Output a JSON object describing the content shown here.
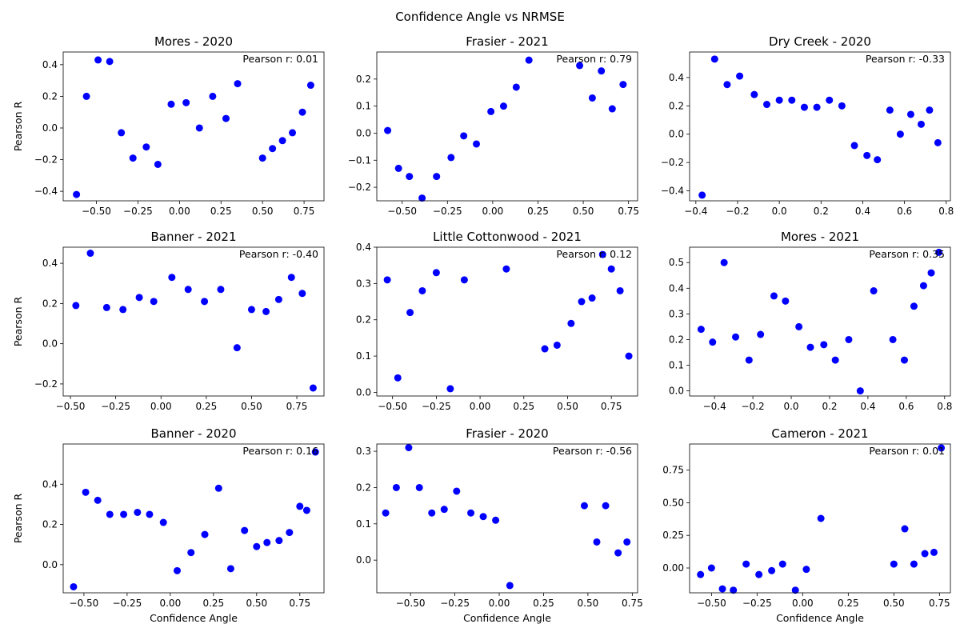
{
  "figure": {
    "suptitle": "Confidence Angle vs NRMSE",
    "marker_color": "#0000ff"
  },
  "chart_data": [
    {
      "type": "scatter",
      "title": "Mores - 2020",
      "annotation": "Pearson r: 0.01",
      "xlabel": "",
      "ylabel": "Pearson R",
      "xlim": [
        -0.7,
        0.87
      ],
      "ylim": [
        -0.46,
        0.48
      ],
      "xticks": [
        -0.5,
        -0.25,
        0.0,
        0.25,
        0.5,
        0.75
      ],
      "xtick_labels": [
        "−0.50",
        "−0.25",
        "0.00",
        "0.25",
        "0.50",
        "0.75"
      ],
      "yticks": [
        -0.4,
        -0.2,
        0.0,
        0.2,
        0.4
      ],
      "ytick_labels": [
        "−0.4",
        "−0.2",
        "0.0",
        "0.2",
        "0.4"
      ],
      "points": [
        [
          -0.62,
          -0.42
        ],
        [
          -0.56,
          0.2
        ],
        [
          -0.49,
          0.43
        ],
        [
          -0.42,
          0.42
        ],
        [
          -0.35,
          -0.03
        ],
        [
          -0.28,
          -0.19
        ],
        [
          -0.2,
          -0.12
        ],
        [
          -0.13,
          -0.23
        ],
        [
          -0.05,
          0.15
        ],
        [
          0.04,
          0.16
        ],
        [
          0.12,
          0.0
        ],
        [
          0.2,
          0.2
        ],
        [
          0.28,
          0.06
        ],
        [
          0.35,
          0.28
        ],
        [
          0.5,
          -0.19
        ],
        [
          0.56,
          -0.13
        ],
        [
          0.62,
          -0.08
        ],
        [
          0.68,
          -0.03
        ],
        [
          0.74,
          0.1
        ],
        [
          0.79,
          0.27
        ]
      ]
    },
    {
      "type": "scatter",
      "title": "Frasier - 2021",
      "annotation": "Pearson r: 0.79",
      "xlabel": "",
      "ylabel": "",
      "xlim": [
        -0.64,
        0.8
      ],
      "ylim": [
        -0.25,
        0.3
      ],
      "xticks": [
        -0.5,
        -0.25,
        0.0,
        0.25,
        0.5,
        0.75
      ],
      "xtick_labels": [
        "−0.50",
        "−0.25",
        "0.00",
        "0.25",
        "0.50",
        "0.75"
      ],
      "yticks": [
        -0.2,
        -0.1,
        0.0,
        0.1,
        0.2
      ],
      "ytick_labels": [
        "−0.2",
        "−0.1",
        "0.0",
        "0.1",
        "0.2"
      ],
      "points": [
        [
          -0.58,
          0.01
        ],
        [
          -0.52,
          -0.13
        ],
        [
          -0.46,
          -0.16
        ],
        [
          -0.39,
          -0.24
        ],
        [
          -0.31,
          -0.16
        ],
        [
          -0.23,
          -0.09
        ],
        [
          -0.16,
          -0.01
        ],
        [
          -0.09,
          -0.04
        ],
        [
          -0.01,
          0.08
        ],
        [
          0.06,
          0.1
        ],
        [
          0.13,
          0.17
        ],
        [
          0.2,
          0.27
        ],
        [
          0.48,
          0.25
        ],
        [
          0.55,
          0.13
        ],
        [
          0.6,
          0.23
        ],
        [
          0.66,
          0.09
        ],
        [
          0.72,
          0.18
        ]
      ]
    },
    {
      "type": "scatter",
      "title": "Dry Creek - 2020",
      "annotation": "Pearson r: -0.33",
      "xlabel": "",
      "ylabel": "",
      "xlim": [
        -0.43,
        0.82
      ],
      "ylim": [
        -0.47,
        0.58
      ],
      "xticks": [
        -0.4,
        -0.2,
        0.0,
        0.2,
        0.4,
        0.6,
        0.8
      ],
      "xtick_labels": [
        "−0.4",
        "−0.2",
        "0.0",
        "0.2",
        "0.4",
        "0.6",
        "0.8"
      ],
      "yticks": [
        -0.4,
        -0.2,
        0.0,
        0.2,
        0.4
      ],
      "ytick_labels": [
        "−0.4",
        "−0.2",
        "0.0",
        "0.2",
        "0.4"
      ],
      "points": [
        [
          -0.37,
          -0.43
        ],
        [
          -0.31,
          0.53
        ],
        [
          -0.25,
          0.35
        ],
        [
          -0.19,
          0.41
        ],
        [
          -0.12,
          0.28
        ],
        [
          -0.06,
          0.21
        ],
        [
          0.0,
          0.24
        ],
        [
          0.06,
          0.24
        ],
        [
          0.12,
          0.19
        ],
        [
          0.18,
          0.19
        ],
        [
          0.24,
          0.24
        ],
        [
          0.3,
          0.2
        ],
        [
          0.36,
          -0.08
        ],
        [
          0.42,
          -0.15
        ],
        [
          0.47,
          -0.18
        ],
        [
          0.53,
          0.17
        ],
        [
          0.58,
          0.0
        ],
        [
          0.63,
          0.14
        ],
        [
          0.68,
          0.07
        ],
        [
          0.72,
          0.17
        ],
        [
          0.76,
          -0.06
        ]
      ]
    },
    {
      "type": "scatter",
      "title": "Banner - 2021",
      "annotation": "Pearson r: -0.40",
      "xlabel": "",
      "ylabel": "Pearson R",
      "xlim": [
        -0.54,
        0.9
      ],
      "ylim": [
        -0.26,
        0.48
      ],
      "xticks": [
        -0.5,
        -0.25,
        0.0,
        0.25,
        0.5,
        0.75
      ],
      "xtick_labels": [
        "−0.50",
        "−0.25",
        "0.00",
        "0.25",
        "0.50",
        "0.75"
      ],
      "yticks": [
        -0.2,
        0.0,
        0.2,
        0.4
      ],
      "ytick_labels": [
        "−0.2",
        "0.0",
        "0.2",
        "0.4"
      ],
      "points": [
        [
          -0.47,
          0.19
        ],
        [
          -0.39,
          0.45
        ],
        [
          -0.3,
          0.18
        ],
        [
          -0.21,
          0.17
        ],
        [
          -0.12,
          0.23
        ],
        [
          -0.04,
          0.21
        ],
        [
          0.06,
          0.33
        ],
        [
          0.15,
          0.27
        ],
        [
          0.24,
          0.21
        ],
        [
          0.33,
          0.27
        ],
        [
          0.42,
          -0.02
        ],
        [
          0.5,
          0.17
        ],
        [
          0.58,
          0.16
        ],
        [
          0.65,
          0.22
        ],
        [
          0.72,
          0.33
        ],
        [
          0.78,
          0.25
        ],
        [
          0.84,
          -0.22
        ]
      ]
    },
    {
      "type": "scatter",
      "title": "Little Cottonwood - 2021",
      "annotation": "Pearson r: 0.12",
      "xlabel": "",
      "ylabel": "",
      "xlim": [
        -0.59,
        0.9
      ],
      "ylim": [
        -0.01,
        0.4
      ],
      "xticks": [
        -0.5,
        -0.25,
        0.0,
        0.25,
        0.5,
        0.75
      ],
      "xtick_labels": [
        "−0.50",
        "−0.25",
        "0.00",
        "0.25",
        "0.50",
        "0.75"
      ],
      "yticks": [
        0.0,
        0.1,
        0.2,
        0.3,
        0.4
      ],
      "ytick_labels": [
        "0.0",
        "0.1",
        "0.2",
        "0.3",
        "0.4"
      ],
      "points": [
        [
          -0.53,
          0.31
        ],
        [
          -0.47,
          0.04
        ],
        [
          -0.4,
          0.22
        ],
        [
          -0.33,
          0.28
        ],
        [
          -0.25,
          0.33
        ],
        [
          -0.17,
          0.01
        ],
        [
          -0.09,
          0.31
        ],
        [
          0.15,
          0.34
        ],
        [
          0.37,
          0.12
        ],
        [
          0.44,
          0.13
        ],
        [
          0.52,
          0.19
        ],
        [
          0.58,
          0.25
        ],
        [
          0.64,
          0.26
        ],
        [
          0.7,
          0.38
        ],
        [
          0.75,
          0.34
        ],
        [
          0.8,
          0.28
        ],
        [
          0.85,
          0.1
        ]
      ]
    },
    {
      "type": "scatter",
      "title": "Mores - 2021",
      "annotation": "Pearson r: 0.35",
      "xlabel": "",
      "ylabel": "",
      "xlim": [
        -0.53,
        0.83
      ],
      "ylim": [
        -0.02,
        0.56
      ],
      "xticks": [
        -0.4,
        -0.2,
        0.0,
        0.2,
        0.4,
        0.6,
        0.8
      ],
      "xtick_labels": [
        "−0.4",
        "−0.2",
        "0.0",
        "0.2",
        "0.4",
        "0.6",
        "0.8"
      ],
      "yticks": [
        0.0,
        0.1,
        0.2,
        0.3,
        0.4,
        0.5
      ],
      "ytick_labels": [
        "0.0",
        "0.1",
        "0.2",
        "0.3",
        "0.4",
        "0.5"
      ],
      "points": [
        [
          -0.47,
          0.24
        ],
        [
          -0.41,
          0.19
        ],
        [
          -0.35,
          0.5
        ],
        [
          -0.29,
          0.21
        ],
        [
          -0.22,
          0.12
        ],
        [
          -0.16,
          0.22
        ],
        [
          -0.09,
          0.37
        ],
        [
          -0.03,
          0.35
        ],
        [
          0.04,
          0.25
        ],
        [
          0.1,
          0.17
        ],
        [
          0.17,
          0.18
        ],
        [
          0.23,
          0.12
        ],
        [
          0.3,
          0.2
        ],
        [
          0.36,
          0.0
        ],
        [
          0.43,
          0.39
        ],
        [
          0.53,
          0.2
        ],
        [
          0.59,
          0.12
        ],
        [
          0.64,
          0.33
        ],
        [
          0.69,
          0.41
        ],
        [
          0.73,
          0.46
        ],
        [
          0.77,
          0.54
        ]
      ]
    },
    {
      "type": "scatter",
      "title": "Banner - 2020",
      "annotation": "Pearson r: 0.16",
      "xlabel": "Confidence Angle",
      "ylabel": "Pearson R",
      "xlim": [
        -0.62,
        0.89
      ],
      "ylim": [
        -0.14,
        0.6
      ],
      "xticks": [
        -0.5,
        -0.25,
        0.0,
        0.25,
        0.5,
        0.75
      ],
      "xtick_labels": [
        "−0.50",
        "−0.25",
        "0.00",
        "0.25",
        "0.50",
        "0.75"
      ],
      "yticks": [
        0.0,
        0.2,
        0.4
      ],
      "ytick_labels": [
        "0.0",
        "0.2",
        "0.4"
      ],
      "points": [
        [
          -0.56,
          -0.11
        ],
        [
          -0.49,
          0.36
        ],
        [
          -0.42,
          0.32
        ],
        [
          -0.35,
          0.25
        ],
        [
          -0.27,
          0.25
        ],
        [
          -0.19,
          0.26
        ],
        [
          -0.12,
          0.25
        ],
        [
          -0.04,
          0.21
        ],
        [
          0.04,
          -0.03
        ],
        [
          0.12,
          0.06
        ],
        [
          0.2,
          0.15
        ],
        [
          0.28,
          0.38
        ],
        [
          0.35,
          -0.02
        ],
        [
          0.43,
          0.17
        ],
        [
          0.5,
          0.09
        ],
        [
          0.56,
          0.11
        ],
        [
          0.63,
          0.12
        ],
        [
          0.69,
          0.16
        ],
        [
          0.75,
          0.29
        ],
        [
          0.79,
          0.27
        ],
        [
          0.84,
          0.56
        ]
      ]
    },
    {
      "type": "scatter",
      "title": "Frasier - 2020",
      "annotation": "Pearson r: -0.56",
      "xlabel": "Confidence Angle",
      "ylabel": "",
      "xlim": [
        -0.69,
        0.78
      ],
      "ylim": [
        -0.09,
        0.32
      ],
      "xticks": [
        -0.5,
        -0.25,
        0.0,
        0.25,
        0.5,
        0.75
      ],
      "xtick_labels": [
        "−0.50",
        "−0.25",
        "0.00",
        "0.25",
        "0.50",
        "0.75"
      ],
      "yticks": [
        0.0,
        0.1,
        0.2,
        0.3
      ],
      "ytick_labels": [
        "0.0",
        "0.1",
        "0.2",
        "0.3"
      ],
      "points": [
        [
          -0.64,
          0.13
        ],
        [
          -0.58,
          0.2
        ],
        [
          -0.51,
          0.31
        ],
        [
          -0.45,
          0.2
        ],
        [
          -0.38,
          0.13
        ],
        [
          -0.31,
          0.14
        ],
        [
          -0.24,
          0.19
        ],
        [
          -0.16,
          0.13
        ],
        [
          -0.09,
          0.12
        ],
        [
          -0.02,
          0.11
        ],
        [
          0.06,
          -0.07
        ],
        [
          0.48,
          0.15
        ],
        [
          0.55,
          0.05
        ],
        [
          0.6,
          0.15
        ],
        [
          0.67,
          0.02
        ],
        [
          0.72,
          0.05
        ]
      ]
    },
    {
      "type": "scatter",
      "title": "Cameron - 2021",
      "annotation": "Pearson r: 0.01",
      "xlabel": "Confidence Angle",
      "ylabel": "",
      "xlim": [
        -0.62,
        0.81
      ],
      "ylim": [
        -0.19,
        0.95
      ],
      "xticks": [
        -0.5,
        -0.25,
        0.0,
        0.25,
        0.5,
        0.75
      ],
      "xtick_labels": [
        "−0.50",
        "−0.25",
        "0.00",
        "0.25",
        "0.50",
        "0.75"
      ],
      "yticks": [
        0.0,
        0.25,
        0.5,
        0.75
      ],
      "ytick_labels": [
        "0.00",
        "0.25",
        "0.50",
        "0.75"
      ],
      "points": [
        [
          -0.56,
          -0.05
        ],
        [
          -0.5,
          0.0
        ],
        [
          -0.44,
          -0.16
        ],
        [
          -0.38,
          -0.17
        ],
        [
          -0.31,
          0.03
        ],
        [
          -0.24,
          -0.05
        ],
        [
          -0.17,
          -0.02
        ],
        [
          -0.11,
          0.03
        ],
        [
          -0.04,
          -0.17
        ],
        [
          0.02,
          -0.01
        ],
        [
          0.1,
          0.38
        ],
        [
          0.5,
          0.03
        ],
        [
          0.56,
          0.3
        ],
        [
          0.61,
          0.03
        ],
        [
          0.67,
          0.11
        ],
        [
          0.72,
          0.12
        ],
        [
          0.76,
          0.92
        ]
      ]
    }
  ]
}
